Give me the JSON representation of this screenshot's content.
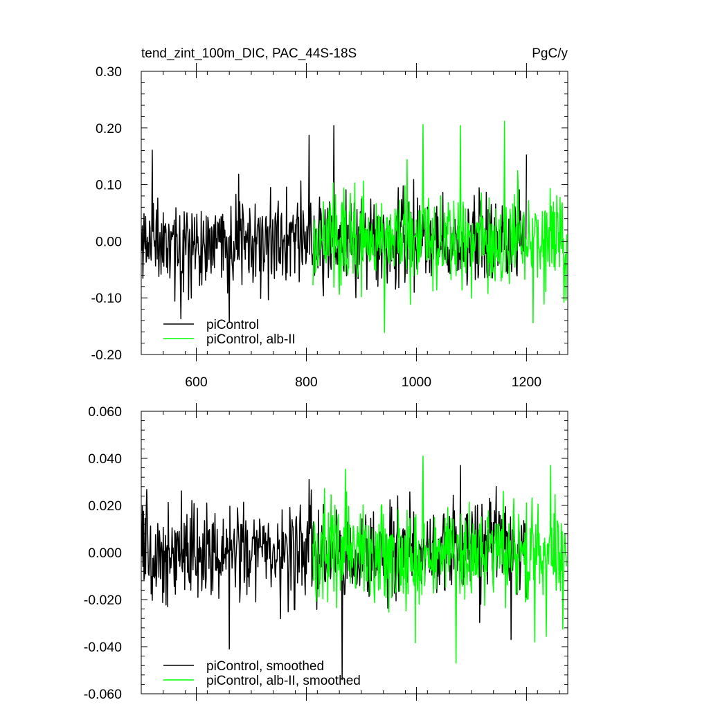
{
  "chart_data": [
    {
      "type": "line",
      "title": "tend_zint_100m_DIC, PAC_44S-18S",
      "units": "PgC/y",
      "xlim": [
        500,
        1275
      ],
      "ylim": [
        -0.2,
        0.3
      ],
      "xticks": [
        600,
        800,
        1000,
        1200
      ],
      "xtick_labels": [
        "600",
        "800",
        "1000",
        "1200"
      ],
      "yticks": [
        -0.2,
        -0.1,
        0.0,
        0.1,
        0.2,
        0.3
      ],
      "ytick_labels": [
        "-0.20",
        "-0.10",
        "0.00",
        "0.10",
        "0.20",
        "0.30"
      ],
      "legend_position": "bottom-left",
      "series": [
        {
          "name": "piControl",
          "color": "#000000",
          "x_start": 500,
          "x_end": 1200,
          "seed": 11,
          "noise_scale": 0.078,
          "clip": [
            -0.14,
            0.21
          ],
          "peaks": [
            [
              520,
              0.161
            ],
            [
              572,
              -0.137
            ],
            [
              660,
              -0.143
            ],
            [
              805,
              0.187
            ],
            [
              850,
              0.204
            ],
            [
              1200,
              0.153
            ]
          ]
        },
        {
          "name": "piControl, alb-II",
          "color": "#00ff00",
          "x_start": 812,
          "x_end": 1273,
          "seed": 29,
          "noise_scale": 0.085,
          "clip": [
            -0.16,
            0.215
          ],
          "peaks": [
            [
              942,
              -0.161
            ],
            [
              1012,
              0.206
            ],
            [
              1080,
              0.204
            ],
            [
              1160,
              0.212
            ],
            [
              1212,
              -0.144
            ],
            [
              1268,
              -0.108
            ]
          ]
        }
      ]
    },
    {
      "type": "line",
      "xlim": [
        500,
        1275
      ],
      "ylim": [
        -0.06,
        0.06
      ],
      "xticks": [
        600,
        800,
        1000,
        1200
      ],
      "yticks": [
        -0.06,
        -0.04,
        -0.02,
        0.0,
        0.02,
        0.04,
        0.06
      ],
      "ytick_labels": [
        "-0.060",
        "-0.040",
        "-0.020",
        "0.000",
        "0.020",
        "0.040",
        "0.060"
      ],
      "legend_position": "bottom-left",
      "series": [
        {
          "name": "piControl, smoothed",
          "color": "#000000",
          "x_start": 500,
          "x_end": 1200,
          "seed": 53,
          "noise_scale": 0.02,
          "clip": [
            -0.055,
            0.038
          ],
          "peaks": [
            [
              660,
              -0.041
            ],
            [
              805,
              0.031
            ],
            [
              865,
              -0.054
            ],
            [
              1080,
              0.037
            ],
            [
              1172,
              -0.037
            ]
          ]
        },
        {
          "name": "piControl, alb-II, smoothed",
          "color": "#00ff00",
          "x_start": 812,
          "x_end": 1273,
          "seed": 71,
          "noise_scale": 0.021,
          "clip": [
            -0.047,
            0.041
          ],
          "peaks": [
            [
              1012,
              0.041
            ],
            [
              1072,
              -0.047
            ],
            [
              1158,
              0.026
            ],
            [
              1215,
              -0.038
            ],
            [
              1244,
              0.037
            ]
          ]
        }
      ]
    }
  ]
}
